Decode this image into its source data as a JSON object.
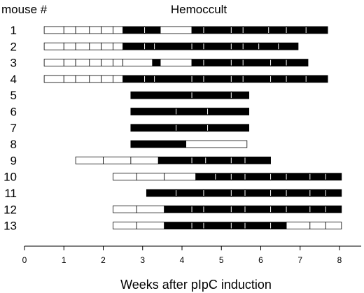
{
  "chart_data": {
    "type": "timeline",
    "title": "Hemoccult",
    "row_axis_label": "mouse #",
    "xlabel": "Weeks after pIpC induction",
    "xlim": [
      0,
      8.5
    ],
    "xticks": [
      0,
      1,
      2,
      3,
      4,
      5,
      6,
      7,
      8
    ],
    "legend": "none",
    "grid": false,
    "colors": {
      "positive": "#000000",
      "negative": "#ffffff",
      "stroke": "#000000"
    },
    "rows": [
      {
        "mouse": "1",
        "segments": [
          {
            "start": 0.5,
            "end": 1.0,
            "positive": false
          },
          {
            "start": 1.0,
            "end": 1.3,
            "positive": false
          },
          {
            "start": 1.3,
            "end": 1.65,
            "positive": false
          },
          {
            "start": 1.65,
            "end": 1.95,
            "positive": false
          },
          {
            "start": 1.95,
            "end": 2.25,
            "positive": false
          },
          {
            "start": 2.25,
            "end": 2.5,
            "positive": false
          },
          {
            "start": 2.5,
            "end": 3.05,
            "positive": true
          },
          {
            "start": 3.05,
            "end": 3.45,
            "positive": true
          },
          {
            "start": 3.45,
            "end": 4.25,
            "positive": false
          },
          {
            "start": 4.25,
            "end": 4.55,
            "positive": true
          },
          {
            "start": 4.55,
            "end": 5.25,
            "positive": true
          },
          {
            "start": 5.25,
            "end": 5.55,
            "positive": true
          },
          {
            "start": 5.55,
            "end": 6.2,
            "positive": true
          },
          {
            "start": 6.2,
            "end": 6.65,
            "positive": true
          },
          {
            "start": 6.65,
            "end": 7.15,
            "positive": true
          },
          {
            "start": 7.15,
            "end": 7.7,
            "positive": true
          }
        ]
      },
      {
        "mouse": "2",
        "segments": [
          {
            "start": 0.5,
            "end": 1.0,
            "positive": false
          },
          {
            "start": 1.0,
            "end": 1.3,
            "positive": false
          },
          {
            "start": 1.3,
            "end": 1.65,
            "positive": false
          },
          {
            "start": 1.65,
            "end": 1.95,
            "positive": false
          },
          {
            "start": 1.95,
            "end": 2.25,
            "positive": false
          },
          {
            "start": 2.25,
            "end": 2.5,
            "positive": false
          },
          {
            "start": 2.5,
            "end": 3.05,
            "positive": true
          },
          {
            "start": 3.05,
            "end": 3.3,
            "positive": true
          },
          {
            "start": 3.3,
            "end": 4.25,
            "positive": true
          },
          {
            "start": 4.25,
            "end": 4.55,
            "positive": true
          },
          {
            "start": 4.55,
            "end": 5.25,
            "positive": true
          },
          {
            "start": 5.25,
            "end": 5.55,
            "positive": true
          },
          {
            "start": 5.55,
            "end": 5.95,
            "positive": true
          },
          {
            "start": 5.95,
            "end": 6.45,
            "positive": true
          },
          {
            "start": 6.45,
            "end": 6.95,
            "positive": true
          }
        ]
      },
      {
        "mouse": "3",
        "segments": [
          {
            "start": 0.5,
            "end": 1.0,
            "positive": false
          },
          {
            "start": 1.0,
            "end": 1.3,
            "positive": false
          },
          {
            "start": 1.3,
            "end": 1.65,
            "positive": false
          },
          {
            "start": 1.65,
            "end": 1.95,
            "positive": false
          },
          {
            "start": 1.95,
            "end": 2.25,
            "positive": false
          },
          {
            "start": 2.25,
            "end": 2.5,
            "positive": false
          },
          {
            "start": 2.5,
            "end": 3.25,
            "positive": false
          },
          {
            "start": 3.25,
            "end": 3.45,
            "positive": true
          },
          {
            "start": 3.45,
            "end": 4.25,
            "positive": false
          },
          {
            "start": 4.25,
            "end": 4.55,
            "positive": true
          },
          {
            "start": 4.55,
            "end": 5.25,
            "positive": true
          },
          {
            "start": 5.25,
            "end": 5.55,
            "positive": true
          },
          {
            "start": 5.55,
            "end": 6.25,
            "positive": true
          },
          {
            "start": 6.25,
            "end": 6.65,
            "positive": true
          },
          {
            "start": 6.65,
            "end": 7.2,
            "positive": true
          }
        ]
      },
      {
        "mouse": "4",
        "segments": [
          {
            "start": 0.5,
            "end": 1.0,
            "positive": false
          },
          {
            "start": 1.0,
            "end": 1.3,
            "positive": false
          },
          {
            "start": 1.3,
            "end": 1.65,
            "positive": false
          },
          {
            "start": 1.65,
            "end": 1.95,
            "positive": false
          },
          {
            "start": 1.95,
            "end": 2.25,
            "positive": false
          },
          {
            "start": 2.25,
            "end": 2.5,
            "positive": false
          },
          {
            "start": 2.5,
            "end": 3.05,
            "positive": true
          },
          {
            "start": 3.05,
            "end": 3.3,
            "positive": true
          },
          {
            "start": 3.3,
            "end": 4.25,
            "positive": true
          },
          {
            "start": 4.25,
            "end": 4.55,
            "positive": true
          },
          {
            "start": 4.55,
            "end": 5.25,
            "positive": true
          },
          {
            "start": 5.25,
            "end": 5.55,
            "positive": true
          },
          {
            "start": 5.55,
            "end": 6.25,
            "positive": true
          },
          {
            "start": 6.25,
            "end": 6.65,
            "positive": true
          },
          {
            "start": 6.65,
            "end": 7.15,
            "positive": true
          },
          {
            "start": 7.15,
            "end": 7.7,
            "positive": true
          }
        ]
      },
      {
        "mouse": "5",
        "segments": [
          {
            "start": 2.7,
            "end": 4.25,
            "positive": true
          },
          {
            "start": 4.25,
            "end": 5.25,
            "positive": true
          },
          {
            "start": 5.25,
            "end": 5.7,
            "positive": true
          }
        ]
      },
      {
        "mouse": "6",
        "segments": [
          {
            "start": 2.7,
            "end": 3.85,
            "positive": true
          },
          {
            "start": 3.85,
            "end": 4.65,
            "positive": true
          },
          {
            "start": 4.65,
            "end": 5.7,
            "positive": true
          }
        ]
      },
      {
        "mouse": "7",
        "segments": [
          {
            "start": 2.7,
            "end": 3.85,
            "positive": true
          },
          {
            "start": 3.85,
            "end": 4.65,
            "positive": true
          },
          {
            "start": 4.65,
            "end": 5.7,
            "positive": true
          }
        ]
      },
      {
        "mouse": "8",
        "segments": [
          {
            "start": 2.7,
            "end": 4.1,
            "positive": true
          },
          {
            "start": 4.1,
            "end": 5.65,
            "positive": false
          }
        ]
      },
      {
        "mouse": "9",
        "segments": [
          {
            "start": 1.3,
            "end": 2.0,
            "positive": false
          },
          {
            "start": 2.0,
            "end": 2.7,
            "positive": false
          },
          {
            "start": 2.7,
            "end": 3.4,
            "positive": false
          },
          {
            "start": 3.4,
            "end": 4.25,
            "positive": true
          },
          {
            "start": 4.25,
            "end": 4.6,
            "positive": true
          },
          {
            "start": 4.6,
            "end": 5.25,
            "positive": true
          },
          {
            "start": 5.25,
            "end": 5.6,
            "positive": true
          },
          {
            "start": 5.6,
            "end": 6.25,
            "positive": true
          }
        ]
      },
      {
        "mouse": "10",
        "segments": [
          {
            "start": 2.25,
            "end": 2.85,
            "positive": false
          },
          {
            "start": 2.85,
            "end": 3.55,
            "positive": false
          },
          {
            "start": 3.55,
            "end": 4.35,
            "positive": false
          },
          {
            "start": 4.35,
            "end": 4.85,
            "positive": true
          },
          {
            "start": 4.85,
            "end": 5.25,
            "positive": true
          },
          {
            "start": 5.25,
            "end": 5.6,
            "positive": true
          },
          {
            "start": 5.6,
            "end": 6.25,
            "positive": true
          },
          {
            "start": 6.25,
            "end": 6.65,
            "positive": true
          },
          {
            "start": 6.65,
            "end": 7.25,
            "positive": true
          },
          {
            "start": 7.25,
            "end": 7.65,
            "positive": true
          },
          {
            "start": 7.65,
            "end": 8.05,
            "positive": true
          }
        ]
      },
      {
        "mouse": "11",
        "segments": [
          {
            "start": 3.1,
            "end": 3.85,
            "positive": true
          },
          {
            "start": 3.85,
            "end": 4.55,
            "positive": true
          },
          {
            "start": 4.55,
            "end": 5.25,
            "positive": true
          },
          {
            "start": 5.25,
            "end": 5.6,
            "positive": true
          },
          {
            "start": 5.6,
            "end": 6.25,
            "positive": true
          },
          {
            "start": 6.25,
            "end": 6.65,
            "positive": true
          },
          {
            "start": 6.65,
            "end": 7.25,
            "positive": true
          },
          {
            "start": 7.25,
            "end": 7.65,
            "positive": true
          },
          {
            "start": 7.65,
            "end": 8.05,
            "positive": true
          }
        ]
      },
      {
        "mouse": "12",
        "segments": [
          {
            "start": 2.25,
            "end": 2.85,
            "positive": false
          },
          {
            "start": 2.85,
            "end": 3.55,
            "positive": false
          },
          {
            "start": 3.55,
            "end": 4.25,
            "positive": true
          },
          {
            "start": 4.25,
            "end": 4.55,
            "positive": true
          },
          {
            "start": 4.55,
            "end": 5.25,
            "positive": true
          },
          {
            "start": 5.25,
            "end": 5.6,
            "positive": true
          },
          {
            "start": 5.6,
            "end": 6.25,
            "positive": true
          },
          {
            "start": 6.25,
            "end": 6.65,
            "positive": true
          },
          {
            "start": 6.65,
            "end": 7.25,
            "positive": true
          },
          {
            "start": 7.25,
            "end": 7.65,
            "positive": true
          },
          {
            "start": 7.65,
            "end": 8.05,
            "positive": true
          }
        ]
      },
      {
        "mouse": "13",
        "segments": [
          {
            "start": 2.25,
            "end": 2.85,
            "positive": false
          },
          {
            "start": 2.85,
            "end": 3.55,
            "positive": false
          },
          {
            "start": 3.55,
            "end": 4.25,
            "positive": true
          },
          {
            "start": 4.25,
            "end": 4.55,
            "positive": true
          },
          {
            "start": 4.55,
            "end": 5.25,
            "positive": true
          },
          {
            "start": 5.25,
            "end": 5.6,
            "positive": true
          },
          {
            "start": 5.6,
            "end": 6.25,
            "positive": true
          },
          {
            "start": 6.25,
            "end": 6.65,
            "positive": true
          },
          {
            "start": 6.65,
            "end": 7.25,
            "positive": false
          },
          {
            "start": 7.25,
            "end": 7.65,
            "positive": false
          },
          {
            "start": 7.65,
            "end": 8.05,
            "positive": false
          }
        ]
      }
    ]
  }
}
